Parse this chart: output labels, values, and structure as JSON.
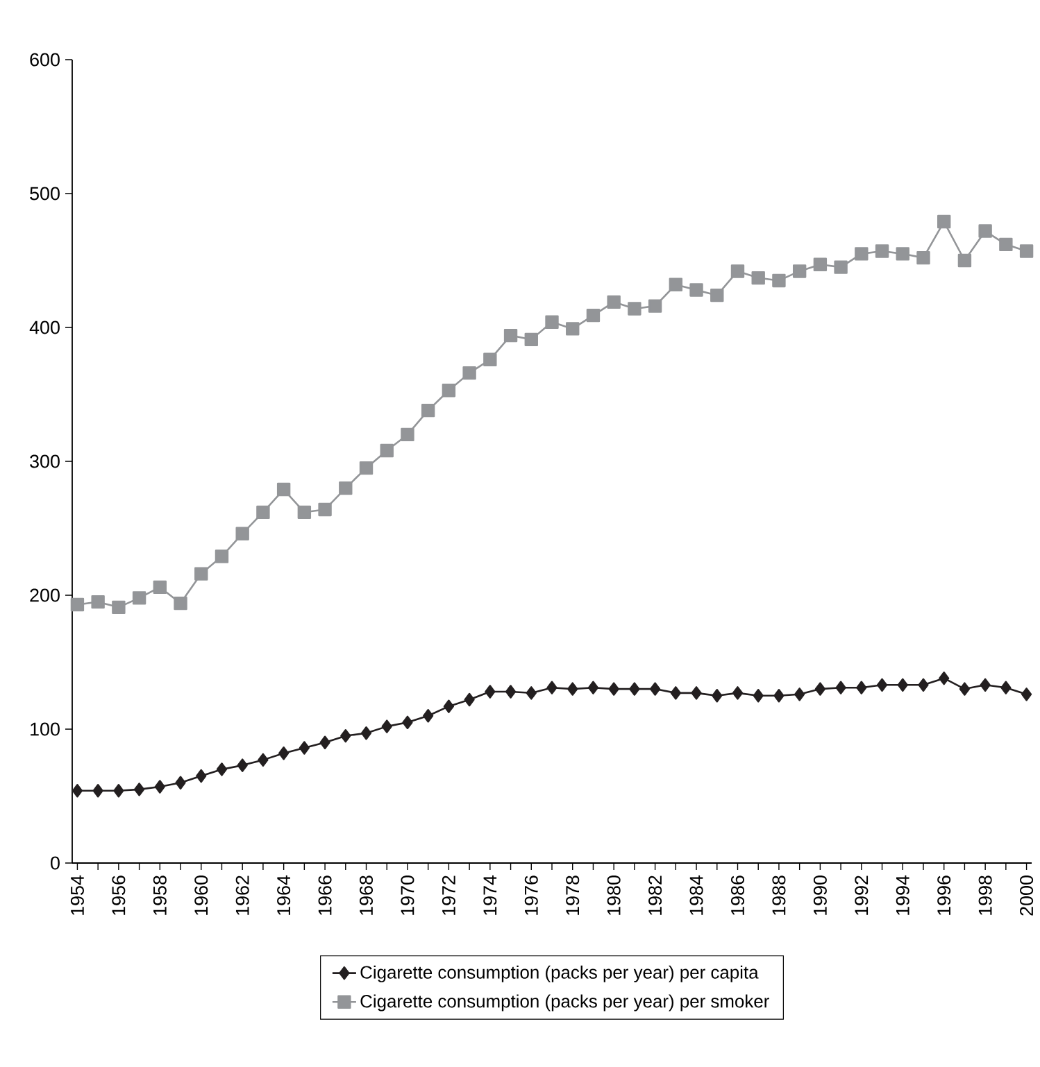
{
  "chart_data": {
    "type": "line",
    "categories": [
      "1954",
      null,
      "1956",
      null,
      "1958",
      null,
      "1960",
      null,
      "1962",
      null,
      "1964",
      null,
      "1966",
      null,
      "1968",
      null,
      "1970",
      null,
      "1972",
      null,
      "1974",
      null,
      "1976",
      null,
      "1978",
      null,
      "1980",
      null,
      "1982",
      null,
      "1984",
      null,
      "1986",
      null,
      "1988",
      null,
      "1990",
      null,
      "1992",
      null,
      "1994",
      null,
      "1996",
      null,
      "1998",
      null,
      "2000"
    ],
    "series": [
      {
        "name": "Cigarette consumption (packs per year) per capita",
        "color": "#231f20",
        "marker": "diamond",
        "values": [
          54,
          54,
          54,
          55,
          57,
          60,
          65,
          70,
          73,
          77,
          82,
          86,
          90,
          95,
          97,
          102,
          105,
          110,
          117,
          122,
          128,
          128,
          127,
          131,
          130,
          131,
          130,
          130,
          130,
          127,
          127,
          125,
          127,
          125,
          125,
          126,
          130,
          131,
          131,
          133,
          133,
          133,
          138,
          130,
          133,
          131,
          126
        ]
      },
      {
        "name": "Cigarette consumption (packs per year) per smoker",
        "color": "#939598",
        "marker": "square",
        "values": [
          193,
          195,
          191,
          198,
          206,
          194,
          216,
          229,
          246,
          262,
          279,
          262,
          264,
          280,
          295,
          308,
          320,
          338,
          353,
          366,
          376,
          394,
          391,
          404,
          399,
          409,
          419,
          414,
          416,
          432,
          428,
          424,
          442,
          437,
          435,
          442,
          447,
          445,
          455,
          457,
          455,
          452,
          479,
          450,
          472,
          462,
          457
        ]
      }
    ],
    "ylim": [
      0,
      600
    ],
    "yticks": [
      0,
      100,
      200,
      300,
      400,
      500,
      600
    ],
    "legend": "bottom",
    "grid": false,
    "line_style": "solid"
  }
}
